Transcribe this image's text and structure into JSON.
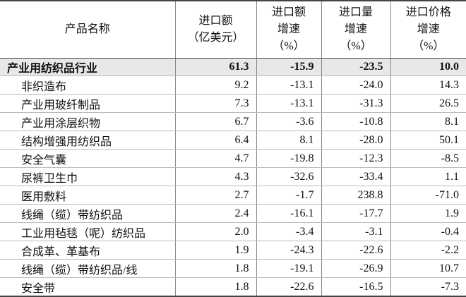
{
  "table": {
    "header": [
      [
        "产品名称"
      ],
      [
        "进口额",
        "（亿美元）"
      ],
      [
        "进口额",
        "增速",
        "（%）"
      ],
      [
        "进口量",
        "增速",
        "（%）"
      ],
      [
        "进口价格",
        "增速",
        "（%）"
      ]
    ],
    "rows": [
      [
        "产业用纺织品行业",
        "61.3",
        "-15.9",
        "-23.5",
        "10.0"
      ],
      [
        "非织造布",
        "9.2",
        "-13.1",
        "-24.0",
        "14.3"
      ],
      [
        "产业用玻纤制品",
        "7.3",
        "-13.1",
        "-31.3",
        "26.5"
      ],
      [
        "产业用涂层织物",
        "6.7",
        "-3.6",
        "-10.8",
        "8.1"
      ],
      [
        "结构增强用纺织品",
        "6.4",
        "8.1",
        "-28.0",
        "50.1"
      ],
      [
        "安全气囊",
        "4.7",
        "-19.8",
        "-12.3",
        "-8.5"
      ],
      [
        "尿裤卫生巾",
        "4.3",
        "-32.6",
        "-33.4",
        "1.1"
      ],
      [
        "医用敷料",
        "2.7",
        "-1.7",
        "238.8",
        "-71.0"
      ],
      [
        "线绳（缆）带纺织品",
        "2.4",
        "-16.1",
        "-17.7",
        "1.9"
      ],
      [
        "工业用毡毯（呢）纺织品",
        "2.0",
        "-3.4",
        "-3.1",
        "-0.4"
      ],
      [
        "合成革、革基布",
        "1.9",
        "-24.3",
        "-22.6",
        "-2.2"
      ],
      [
        "线绳（缆）带纺织品/线",
        "1.8",
        "-19.1",
        "-26.9",
        "10.7"
      ],
      [
        "安全带",
        "1.8",
        "-22.6",
        "-16.5",
        "-7.3"
      ]
    ]
  }
}
